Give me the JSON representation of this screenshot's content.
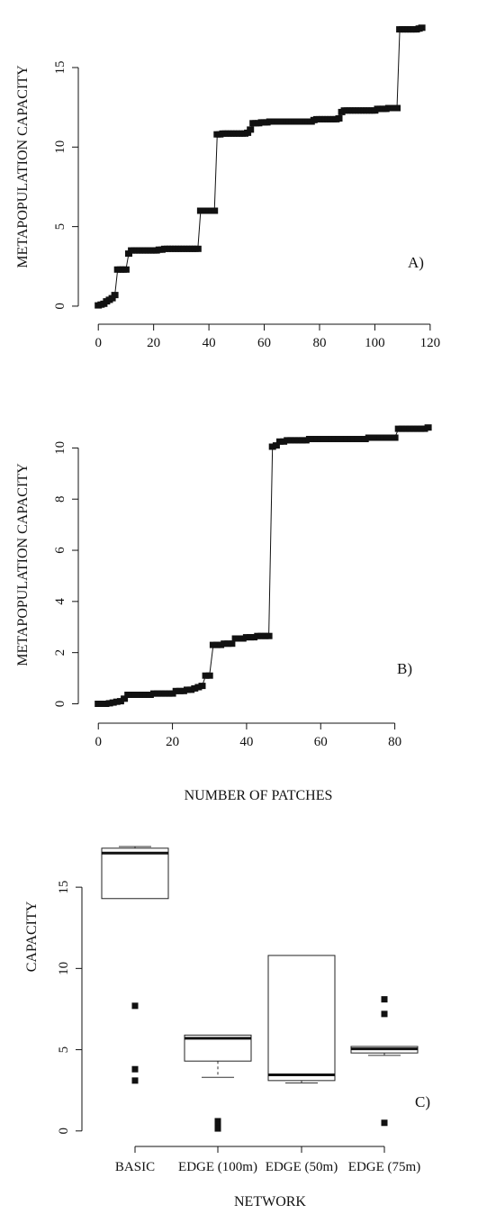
{
  "chart_data": [
    {
      "type": "scatter",
      "panel_label": "A)",
      "xlabel": "",
      "ylabel": "METAPOPULATION CAPACITY",
      "xlim": [
        -3,
        122
      ],
      "ylim": [
        -0.4,
        18
      ],
      "xticks": [
        0,
        20,
        40,
        60,
        80,
        100,
        120
      ],
      "yticks": [
        0,
        5,
        10,
        15
      ],
      "series": [
        {
          "x": [
            0,
            1,
            2,
            3,
            4,
            5,
            6,
            7,
            8,
            9,
            10,
            11,
            12,
            13,
            14,
            15,
            16,
            17,
            18,
            19,
            20,
            21,
            22,
            23,
            24,
            25,
            26,
            27,
            28,
            29,
            30,
            31,
            32,
            33,
            34,
            35,
            36,
            37,
            38,
            39,
            40,
            41,
            42,
            43,
            44,
            45,
            46,
            47,
            48,
            49,
            50,
            51,
            52,
            53,
            54,
            55,
            56,
            57,
            58,
            59,
            60,
            61,
            62,
            63,
            64,
            65,
            66,
            67,
            68,
            69,
            70,
            71,
            72,
            73,
            74,
            75,
            76,
            77,
            78,
            79,
            80,
            81,
            82,
            83,
            84,
            85,
            86,
            87,
            88,
            89,
            90,
            91,
            92,
            93,
            94,
            95,
            96,
            97,
            98,
            99,
            100,
            101,
            102,
            103,
            104,
            105,
            106,
            107,
            108,
            109,
            110,
            111,
            112,
            113,
            114,
            115,
            116,
            117
          ],
          "y": [
            0.05,
            0.1,
            0.15,
            0.3,
            0.4,
            0.5,
            0.7,
            2.3,
            2.3,
            2.3,
            2.3,
            3.3,
            3.5,
            3.5,
            3.5,
            3.5,
            3.5,
            3.5,
            3.5,
            3.5,
            3.5,
            3.5,
            3.55,
            3.55,
            3.6,
            3.6,
            3.6,
            3.6,
            3.6,
            3.6,
            3.6,
            3.6,
            3.6,
            3.6,
            3.6,
            3.6,
            3.6,
            6.0,
            6.0,
            6.0,
            6.0,
            6.0,
            6.0,
            10.8,
            10.8,
            10.85,
            10.85,
            10.85,
            10.85,
            10.85,
            10.85,
            10.85,
            10.85,
            10.85,
            10.9,
            11.1,
            11.5,
            11.5,
            11.5,
            11.55,
            11.55,
            11.55,
            11.6,
            11.6,
            11.6,
            11.6,
            11.6,
            11.6,
            11.6,
            11.6,
            11.6,
            11.6,
            11.6,
            11.6,
            11.6,
            11.6,
            11.6,
            11.6,
            11.7,
            11.75,
            11.75,
            11.75,
            11.75,
            11.75,
            11.75,
            11.75,
            11.75,
            11.8,
            12.2,
            12.3,
            12.3,
            12.3,
            12.3,
            12.3,
            12.3,
            12.3,
            12.3,
            12.3,
            12.3,
            12.3,
            12.3,
            12.4,
            12.4,
            12.4,
            12.4,
            12.45,
            12.45,
            12.45,
            12.45,
            17.4,
            17.4,
            17.4,
            17.4,
            17.4,
            17.4,
            17.4,
            17.45,
            17.5
          ]
        }
      ]
    },
    {
      "type": "scatter",
      "panel_label": "B)",
      "xlabel": "NUMBER OF PATCHES",
      "ylabel": "METAPOPULATION CAPACITY",
      "xlim": [
        -2,
        92
      ],
      "ylim": [
        -0.3,
        11
      ],
      "xticks": [
        0,
        20,
        40,
        60,
        80
      ],
      "yticks": [
        0,
        2,
        4,
        6,
        8,
        10
      ],
      "series": [
        {
          "x": [
            0,
            1,
            2,
            3,
            4,
            5,
            6,
            7,
            8,
            9,
            10,
            11,
            12,
            13,
            14,
            15,
            16,
            17,
            18,
            19,
            20,
            21,
            22,
            23,
            24,
            25,
            26,
            27,
            28,
            29,
            30,
            31,
            32,
            33,
            34,
            35,
            36,
            37,
            38,
            39,
            40,
            41,
            42,
            43,
            44,
            45,
            46,
            47,
            48,
            49,
            50,
            51,
            52,
            53,
            54,
            55,
            56,
            57,
            58,
            59,
            60,
            61,
            62,
            63,
            64,
            65,
            66,
            67,
            68,
            69,
            70,
            71,
            72,
            73,
            74,
            75,
            76,
            77,
            78,
            79,
            80,
            81,
            82,
            83,
            84,
            85,
            86,
            87,
            88,
            89
          ],
          "y": [
            0,
            0,
            0,
            0.02,
            0.05,
            0.08,
            0.1,
            0.2,
            0.35,
            0.35,
            0.35,
            0.35,
            0.35,
            0.35,
            0.35,
            0.4,
            0.4,
            0.4,
            0.4,
            0.4,
            0.4,
            0.5,
            0.5,
            0.5,
            0.55,
            0.55,
            0.6,
            0.65,
            0.7,
            1.1,
            1.1,
            2.3,
            2.3,
            2.3,
            2.35,
            2.35,
            2.35,
            2.55,
            2.55,
            2.55,
            2.6,
            2.6,
            2.6,
            2.65,
            2.65,
            2.65,
            2.65,
            10.05,
            10.1,
            10.25,
            10.25,
            10.3,
            10.3,
            10.3,
            10.3,
            10.3,
            10.3,
            10.35,
            10.35,
            10.35,
            10.35,
            10.35,
            10.35,
            10.35,
            10.35,
            10.35,
            10.35,
            10.35,
            10.35,
            10.35,
            10.35,
            10.35,
            10.35,
            10.4,
            10.4,
            10.4,
            10.4,
            10.4,
            10.4,
            10.4,
            10.4,
            10.75,
            10.75,
            10.75,
            10.75,
            10.75,
            10.75,
            10.75,
            10.75,
            10.8
          ]
        }
      ]
    },
    {
      "type": "box",
      "panel_label": "C)",
      "xlabel": "NETWORK",
      "ylabel": "CAPACITY",
      "ylim": [
        -0.4,
        18
      ],
      "yticks": [
        0,
        5,
        10,
        15
      ],
      "categories": [
        "BASIC",
        "EDGE (100m)",
        "EDGE (50m)",
        "EDGE (75m)"
      ],
      "boxes": [
        {
          "whisker_low": 14.3,
          "q1": 14.3,
          "median": 17.1,
          "q3": 17.4,
          "whisker_high": 17.5,
          "outliers": [
            7.7,
            3.8,
            3.1
          ]
        },
        {
          "whisker_low": 3.3,
          "q1": 4.3,
          "median": 5.7,
          "q3": 5.9,
          "whisker_high": 5.9,
          "outliers": [
            0.6,
            0.35,
            0.15
          ]
        },
        {
          "whisker_low": 2.95,
          "q1": 3.1,
          "median": 3.45,
          "q3": 10.8,
          "whisker_high": 10.8,
          "outliers": []
        },
        {
          "whisker_low": 4.65,
          "q1": 4.8,
          "median": 5.05,
          "q3": 5.2,
          "whisker_high": 5.2,
          "outliers": [
            8.1,
            7.2,
            0.5
          ]
        }
      ]
    }
  ]
}
